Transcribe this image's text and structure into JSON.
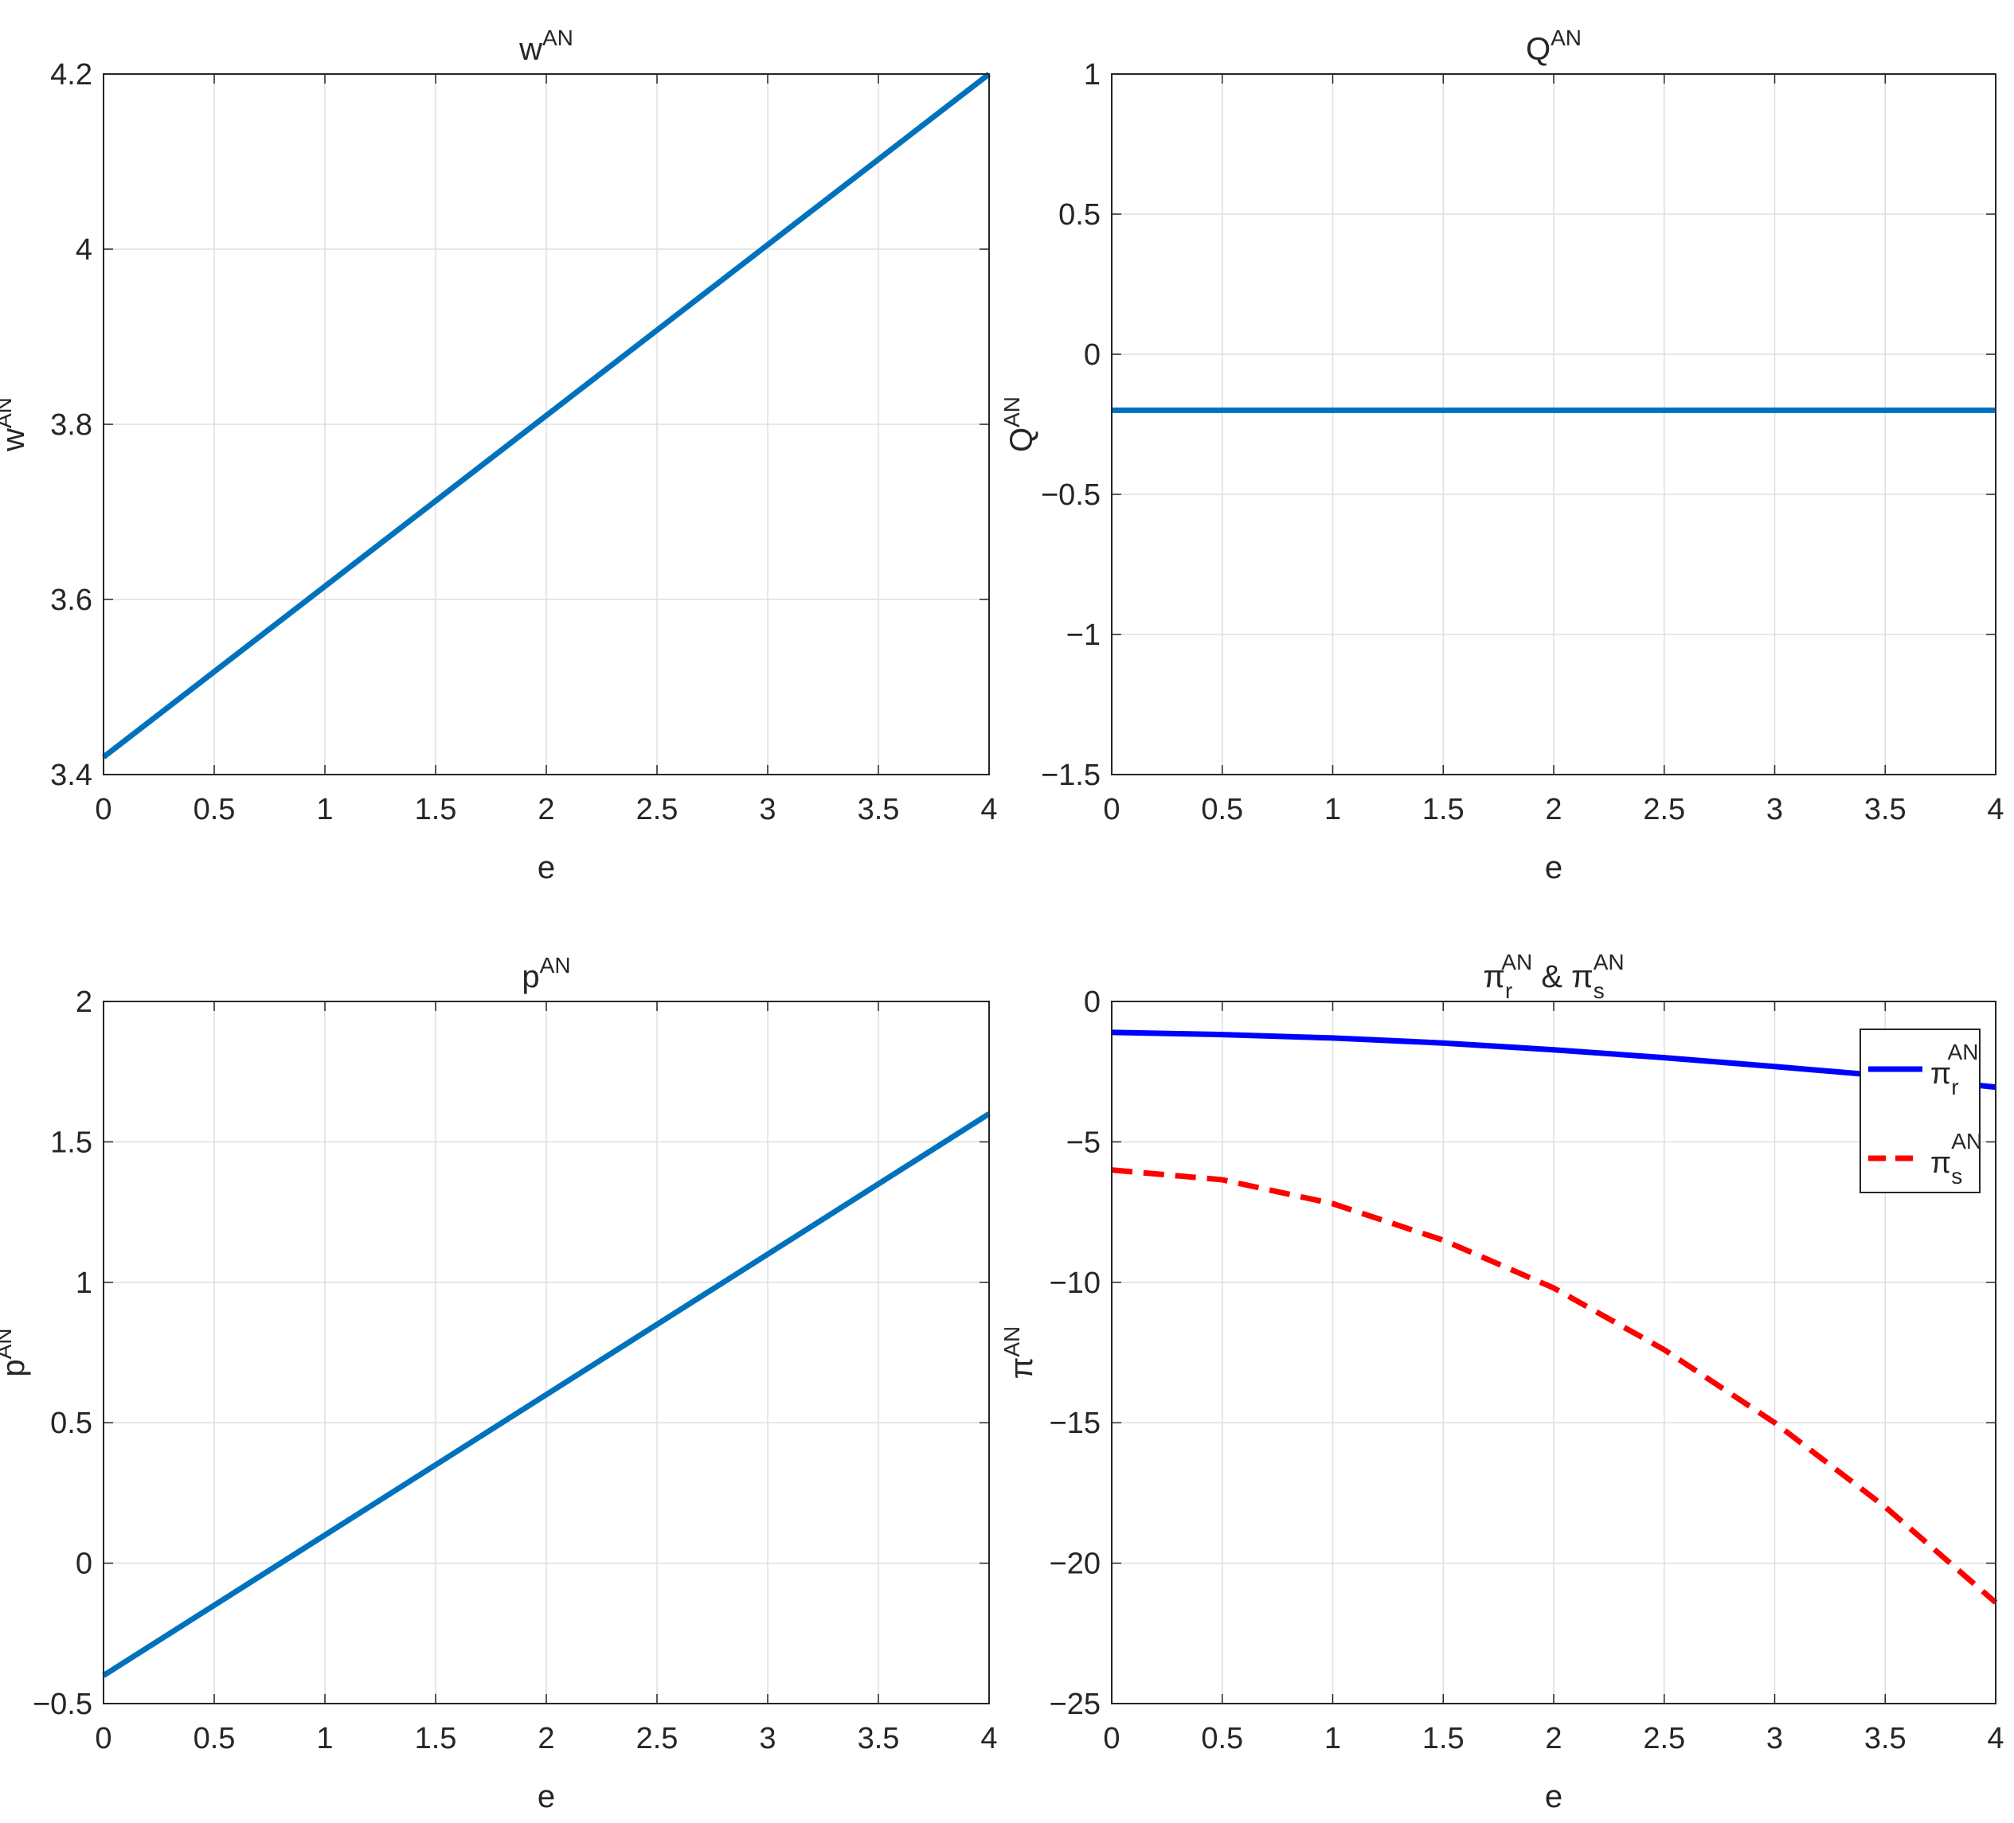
{
  "figure": {
    "charts": [
      {
        "id": "w",
        "title": {
          "base": "w",
          "sup": "AN"
        },
        "ylabel": {
          "base": "w",
          "sup": "AN"
        },
        "xlabel": "e"
      },
      {
        "id": "Q",
        "title": {
          "base": "Q",
          "sup": "AN"
        },
        "ylabel": {
          "base": "Q",
          "sup": "AN"
        },
        "xlabel": "e"
      },
      {
        "id": "p",
        "title": {
          "base": "p",
          "sup": "AN"
        },
        "ylabel": {
          "base": "p",
          "sup": "AN"
        },
        "xlabel": "e"
      },
      {
        "id": "pi",
        "title": {
          "p1": "π",
          "sub1": "r",
          "sup1": "AN",
          "mid": " & ",
          "p2": "π",
          "sub2": "s",
          "sup2": "AN"
        },
        "ylabel": {
          "base": "π",
          "sup": "AN"
        },
        "xlabel": "e",
        "legend": [
          {
            "base": "π",
            "sub": "r",
            "sup": "AN"
          },
          {
            "base": "π",
            "sub": "s",
            "sup": "AN"
          }
        ]
      }
    ]
  },
  "chart_data": [
    {
      "type": "line",
      "xlim": [
        0,
        4
      ],
      "ylim": [
        3.4,
        4.2
      ],
      "xticks": [
        "0",
        "0.5",
        "1",
        "1.5",
        "2",
        "2.5",
        "3",
        "3.5",
        "4"
      ],
      "yticks": [
        "3.4",
        "3.6",
        "3.8",
        "4",
        "4.2"
      ],
      "grid": true,
      "series": [
        {
          "color": "#0072BD",
          "style": "solid",
          "x": [
            0,
            4
          ],
          "y": [
            3.42,
            4.2
          ]
        }
      ]
    },
    {
      "type": "line",
      "xlim": [
        0,
        4
      ],
      "ylim": [
        -1.5,
        1
      ],
      "xticks": [
        "0",
        "0.5",
        "1",
        "1.5",
        "2",
        "2.5",
        "3",
        "3.5",
        "4"
      ],
      "yticks": [
        "−1.5",
        "−1",
        "−0.5",
        "0",
        "0.5",
        "1"
      ],
      "grid": true,
      "series": [
        {
          "color": "#0072BD",
          "style": "solid",
          "x": [
            0,
            4
          ],
          "y": [
            -0.2,
            -0.2
          ]
        }
      ]
    },
    {
      "type": "line",
      "xlim": [
        0,
        4
      ],
      "ylim": [
        -0.5,
        2
      ],
      "xticks": [
        "0",
        "0.5",
        "1",
        "1.5",
        "2",
        "2.5",
        "3",
        "3.5",
        "4"
      ],
      "yticks": [
        "−0.5",
        "0",
        "0.5",
        "1",
        "1.5",
        "2"
      ],
      "grid": true,
      "series": [
        {
          "color": "#0072BD",
          "style": "solid",
          "x": [
            0,
            4
          ],
          "y": [
            -0.4,
            1.6
          ]
        }
      ]
    },
    {
      "type": "line",
      "xlim": [
        0,
        4
      ],
      "ylim": [
        -25,
        0
      ],
      "xticks": [
        "0",
        "0.5",
        "1",
        "1.5",
        "2",
        "2.5",
        "3",
        "3.5",
        "4"
      ],
      "yticks": [
        "−25",
        "−20",
        "−15",
        "−10",
        "−5",
        "0"
      ],
      "grid": true,
      "legend_position": "top-right",
      "series": [
        {
          "name": "π_r^AN",
          "color": "#0000FF",
          "style": "solid",
          "x": [
            0,
            0.5,
            1,
            1.5,
            2,
            2.5,
            3,
            3.5,
            4
          ],
          "y": [
            -1.1,
            -1.18,
            -1.3,
            -1.48,
            -1.72,
            -2.0,
            -2.32,
            -2.65,
            -3.05
          ]
        },
        {
          "name": "π_s^AN",
          "color": "#FF0000",
          "style": "dashed",
          "x": [
            0,
            0.5,
            1,
            1.5,
            2,
            2.5,
            3,
            3.5,
            4
          ],
          "y": [
            -6.0,
            -6.35,
            -7.2,
            -8.5,
            -10.2,
            -12.4,
            -15.0,
            -18.0,
            -21.4
          ]
        }
      ]
    }
  ]
}
